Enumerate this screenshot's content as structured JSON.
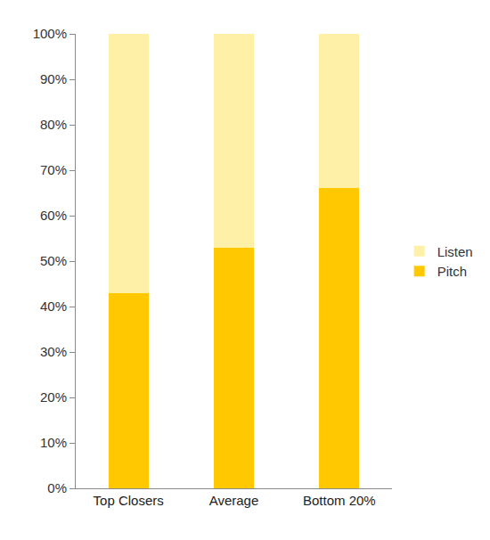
{
  "chart_data": {
    "type": "bar",
    "stacked": true,
    "categories": [
      "Top Closers",
      "Average",
      "Bottom 20%"
    ],
    "series": [
      {
        "name": "Pitch",
        "color": "#ffc800",
        "values": [
          43,
          53,
          66
        ]
      },
      {
        "name": "Listen",
        "color": "#fff0a8",
        "values": [
          57,
          47,
          34
        ]
      }
    ],
    "ylim": [
      0,
      100
    ],
    "yticks": [
      {
        "value": 0,
        "label": "0%"
      },
      {
        "value": 10,
        "label": "10%"
      },
      {
        "value": 20,
        "label": "20%"
      },
      {
        "value": 30,
        "label": "30%"
      },
      {
        "value": 40,
        "label": "40%"
      },
      {
        "value": 50,
        "label": "50%"
      },
      {
        "value": 60,
        "label": "60%"
      },
      {
        "value": 70,
        "label": "70%"
      },
      {
        "value": 80,
        "label": "80%"
      },
      {
        "value": 90,
        "label": "90%"
      },
      {
        "value": 100,
        "label": "100%"
      }
    ],
    "grid": false,
    "legend": "right"
  }
}
